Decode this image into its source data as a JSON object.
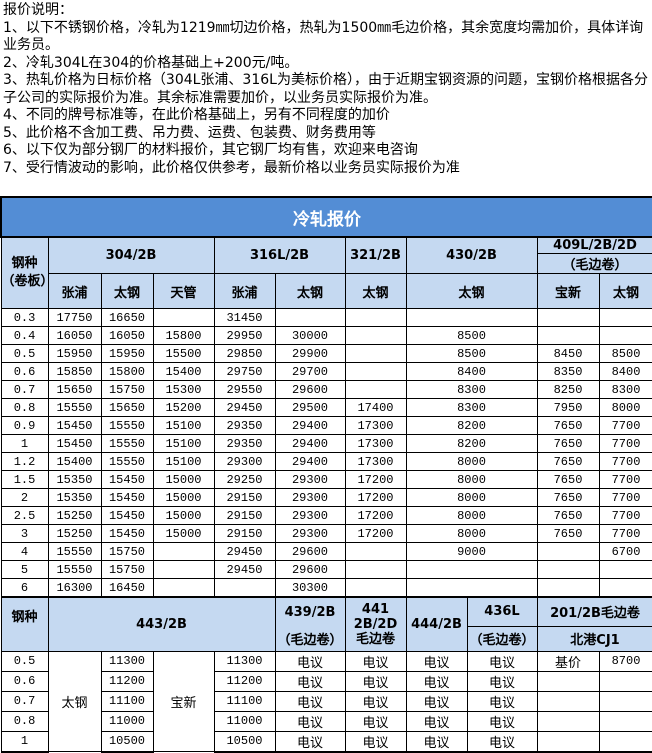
{
  "notes": {
    "heading": "报价说明：",
    "lines": [
      "1、以下不锈钢价格，冷轧为1219㎜切边价格，热轧为1500㎜毛边价格，其余宽度均需加价，具体详询业务员。",
      "2、冷轧304L在304的价格基础上+200元/吨。",
      "3、热轧价格为日标价格（304L张浦、316L为美标价格），由于近期宝钢资源的问题，宝钢价格根据各分子公司的实际报价为准。其余标准需要加价，以业务员实际报价为准。",
      "4、不同的牌号标准等，在此价格基础上，另有不同程度的加价",
      "5、此价格不含加工费、吊力费、运费、包装费、财务费用等",
      "6、以下仅为部分钢厂的材料报价，其它钢厂均有售，欢迎来电咨询",
      "7、受行情波动的影响，此价格仅供参考，最新价格以业务员实际报价为准"
    ]
  },
  "cold_rolled": {
    "title": "冷轧报价",
    "grade_header": "钢种（卷板）",
    "grades": [
      "304/2B",
      "316L/2B",
      "321/2B",
      "430/2B",
      "409L/2B/2D",
      "（毛边卷）"
    ],
    "mills": [
      "张浦",
      "太钢",
      "天管",
      "张浦",
      "太钢",
      "太钢",
      "太钢",
      "宝新",
      "太钢"
    ],
    "rows": [
      [
        "0.3",
        "17750",
        "16650",
        "",
        "31450",
        "",
        "",
        "",
        "",
        ""
      ],
      [
        "0.4",
        "16050",
        "16050",
        "15800",
        "29950",
        "30000",
        "",
        "8500",
        "",
        ""
      ],
      [
        "0.5",
        "15950",
        "15950",
        "15500",
        "29850",
        "29900",
        "",
        "8500",
        "8450",
        "8500"
      ],
      [
        "0.6",
        "15850",
        "15800",
        "15400",
        "29750",
        "29700",
        "",
        "8400",
        "8350",
        "8400"
      ],
      [
        "0.7",
        "15650",
        "15750",
        "15300",
        "29550",
        "29600",
        "",
        "8300",
        "8250",
        "8300"
      ],
      [
        "0.8",
        "15550",
        "15650",
        "15200",
        "29450",
        "29500",
        "17400",
        "8300",
        "7950",
        "8000"
      ],
      [
        "0.9",
        "15450",
        "15550",
        "15100",
        "29350",
        "29400",
        "17300",
        "8200",
        "7650",
        "7700"
      ],
      [
        "1",
        "15450",
        "15550",
        "15100",
        "29350",
        "29400",
        "17300",
        "8200",
        "7650",
        "7700"
      ],
      [
        "1.2",
        "15400",
        "15550",
        "15100",
        "29300",
        "29400",
        "17300",
        "8000",
        "7650",
        "7700"
      ],
      [
        "1.5",
        "15350",
        "15450",
        "15000",
        "29250",
        "29300",
        "17200",
        "8000",
        "7650",
        "7700"
      ],
      [
        "2",
        "15350",
        "15450",
        "15000",
        "29150",
        "29300",
        "17200",
        "8000",
        "7650",
        "7700"
      ],
      [
        "2.5",
        "15250",
        "15450",
        "15000",
        "29150",
        "29300",
        "17200",
        "8000",
        "7650",
        "7700"
      ],
      [
        "3",
        "15250",
        "15450",
        "15000",
        "29150",
        "29300",
        "17200",
        "8000",
        "7650",
        "7700"
      ],
      [
        "4",
        "15550",
        "15750",
        "",
        "29450",
        "29600",
        "",
        "9000",
        "",
        "6700"
      ],
      [
        "5",
        "15550",
        "15750",
        "",
        "29450",
        "29600",
        "",
        "",
        "",
        ""
      ],
      [
        "6",
        "16300",
        "16450",
        "",
        "",
        "30300",
        "",
        "",
        "",
        ""
      ]
    ]
  },
  "section2": {
    "grade_header": "钢种",
    "g443": "443/2B",
    "g439": "439/2B",
    "g439_sub": "（毛边卷）",
    "g441": "441 2B/2D 毛边卷",
    "g444": "444/2B",
    "g436": "436L",
    "g436_sub": "（毛边卷）",
    "g201": "201/2B毛边卷",
    "g201_sub": "北港CJ1",
    "mill_a": "太钢",
    "mill_b": "宝新",
    "rows": [
      [
        "0.5",
        "11300",
        "11300",
        "电议",
        "电议",
        "电议",
        "电议",
        "基价",
        "8700"
      ],
      [
        "0.6",
        "11200",
        "11200",
        "电议",
        "电议",
        "电议",
        "电议",
        "",
        ""
      ],
      [
        "0.7",
        "11100",
        "11100",
        "电议",
        "电议",
        "电议",
        "电议",
        "",
        ""
      ],
      [
        "0.8",
        "11000",
        "11000",
        "电议",
        "电议",
        "电议",
        "电议",
        "",
        ""
      ],
      [
        "1",
        "10500",
        "10500",
        "电议",
        "电议",
        "电议",
        "电议",
        "",
        ""
      ]
    ]
  },
  "colors": {
    "title_bg": "#538DD5",
    "header_bg": "#C5D9F1"
  }
}
